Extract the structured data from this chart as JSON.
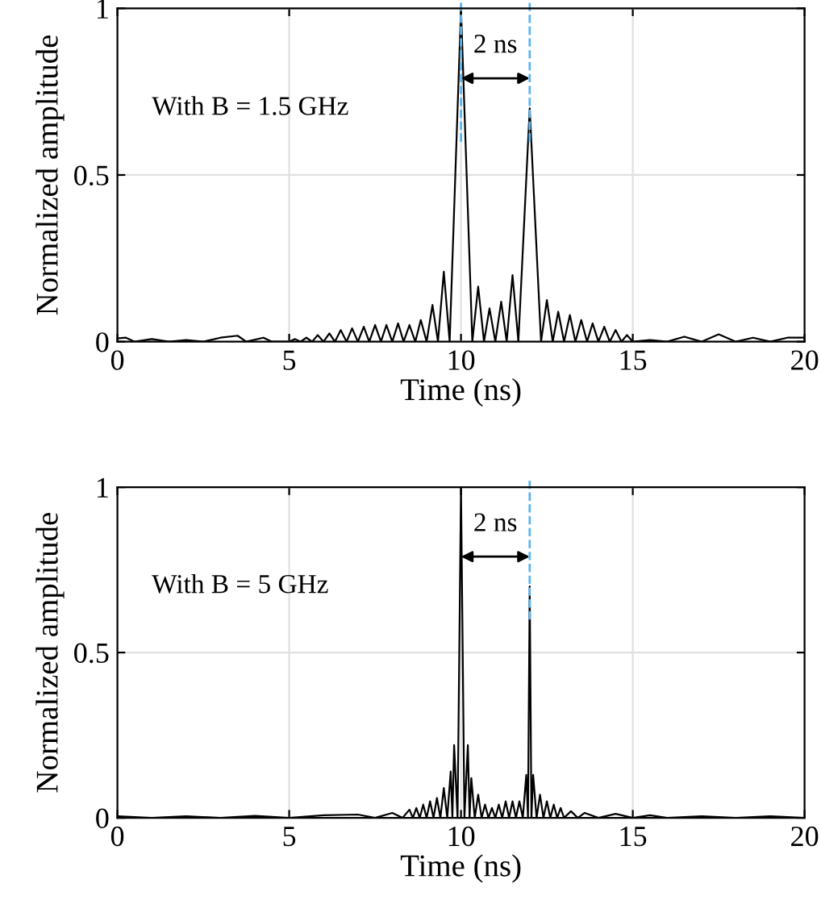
{
  "chart_data": [
    {
      "type": "line",
      "xlabel": "Time (ns)",
      "ylabel": "Normalized amplitude",
      "xlim": [
        0,
        20
      ],
      "ylim": [
        0,
        1
      ],
      "xticks": [
        0,
        5,
        10,
        15,
        20
      ],
      "yticks": [
        0,
        0.5,
        1
      ],
      "grid": true,
      "legend": false,
      "annotations": [
        "With B = 1.5 GHz",
        "2 ns"
      ],
      "ref_lines": [
        {
          "axis": "x",
          "value": 10,
          "color": "#5ab4f0",
          "line_style": "dashed"
        },
        {
          "axis": "x",
          "value": 12,
          "color": "#5ab4f0",
          "line_style": "dashed"
        }
      ],
      "series": [
        {
          "color": "#000000",
          "x": [
            0,
            0.25,
            0.5,
            1,
            1.5,
            2,
            2.5,
            3,
            3.5,
            3.75,
            4.25,
            4.5,
            5.0,
            5.17,
            5.33,
            5.5,
            5.67,
            5.83,
            6.0,
            6.17,
            6.33,
            6.5,
            6.67,
            6.83,
            7.0,
            7.17,
            7.33,
            7.5,
            7.67,
            7.83,
            8.0,
            8.17,
            8.33,
            8.5,
            8.67,
            8.83,
            9.0,
            9.17,
            9.33,
            9.5,
            9.67,
            10,
            10.33,
            10.5,
            10.67,
            10.83,
            11.0,
            11.17,
            11.33,
            11.5,
            11.67,
            12,
            12.33,
            12.5,
            12.67,
            12.83,
            13.0,
            13.17,
            13.33,
            13.5,
            13.67,
            13.83,
            14.0,
            14.17,
            14.33,
            14.5,
            14.67,
            14.83,
            15.0,
            15.5,
            16,
            16.5,
            17,
            17.5,
            18,
            18.5,
            19,
            19.5,
            20
          ],
          "values": [
            0.01,
            0.012,
            0,
            0.008,
            0,
            0.005,
            0,
            0.012,
            0.018,
            0,
            0.012,
            0,
            0,
            0.008,
            0,
            0.012,
            0,
            0.02,
            0,
            0.025,
            0,
            0.035,
            0,
            0.04,
            0,
            0.045,
            0,
            0.05,
            0,
            0.05,
            0,
            0.055,
            0,
            0.05,
            0,
            0.065,
            0,
            0.11,
            0,
            0.21,
            0,
            1,
            0,
            0.165,
            0,
            0.1,
            0,
            0.12,
            0,
            0.2,
            0,
            0.7,
            0,
            0.125,
            0,
            0.09,
            0,
            0.08,
            0,
            0.065,
            0,
            0.055,
            0,
            0.045,
            0,
            0.035,
            0,
            0.02,
            0,
            0.005,
            0,
            0.015,
            0,
            0.022,
            0,
            0.012,
            0,
            0.012,
            0.012
          ]
        }
      ]
    },
    {
      "type": "line",
      "xlabel": "Time (ns)",
      "ylabel": "Normalized amplitude",
      "xlim": [
        0,
        20
      ],
      "ylim": [
        0,
        1
      ],
      "xticks": [
        0,
        5,
        10,
        15,
        20
      ],
      "yticks": [
        0,
        0.5,
        1
      ],
      "grid": true,
      "legend": false,
      "annotations": [
        "With B = 5 GHz",
        "2 ns"
      ],
      "ref_lines": [
        {
          "axis": "x",
          "value": 12,
          "color": "#5ab4f0",
          "line_style": "dashed"
        }
      ],
      "series": [
        {
          "color": "#000000",
          "x": [
            0,
            1,
            2,
            3,
            4,
            5,
            6,
            7,
            7.5,
            8,
            8.3,
            8.5,
            8.6,
            8.7,
            8.8,
            8.9,
            9.0,
            9.1,
            9.2,
            9.3,
            9.4,
            9.5,
            9.6,
            9.7,
            9.75,
            9.8,
            9.9,
            10,
            10.1,
            10.2,
            10.25,
            10.3,
            10.4,
            10.5,
            10.6,
            10.7,
            10.8,
            10.9,
            11.0,
            11.1,
            11.2,
            11.3,
            11.4,
            11.5,
            11.6,
            11.7,
            11.8,
            11.9,
            11.95,
            12,
            12.05,
            12.1,
            12.2,
            12.3,
            12.4,
            12.5,
            12.6,
            12.7,
            12.8,
            12.9,
            13.0,
            13.2,
            13.4,
            13.6,
            14,
            14.5,
            15,
            15.5,
            16,
            17,
            18,
            19,
            20
          ],
          "values": [
            0.005,
            0,
            0.005,
            0,
            0.006,
            0,
            0.008,
            0.01,
            0,
            0.015,
            0,
            0.025,
            0,
            0.03,
            0,
            0.04,
            0,
            0.05,
            0,
            0.06,
            0,
            0.09,
            0,
            0.14,
            0,
            0.22,
            0,
            1,
            0,
            0.22,
            0,
            0.12,
            0,
            0.07,
            0,
            0.04,
            0,
            0.03,
            0,
            0.04,
            0,
            0.05,
            0,
            0.05,
            0,
            0.05,
            0,
            0.13,
            0,
            0.7,
            0,
            0.13,
            0,
            0.07,
            0,
            0.05,
            0,
            0.04,
            0,
            0.03,
            0,
            0.02,
            0,
            0.015,
            0,
            0.012,
            0,
            0.008,
            0,
            0.005,
            0,
            0.005,
            0
          ]
        }
      ]
    }
  ]
}
